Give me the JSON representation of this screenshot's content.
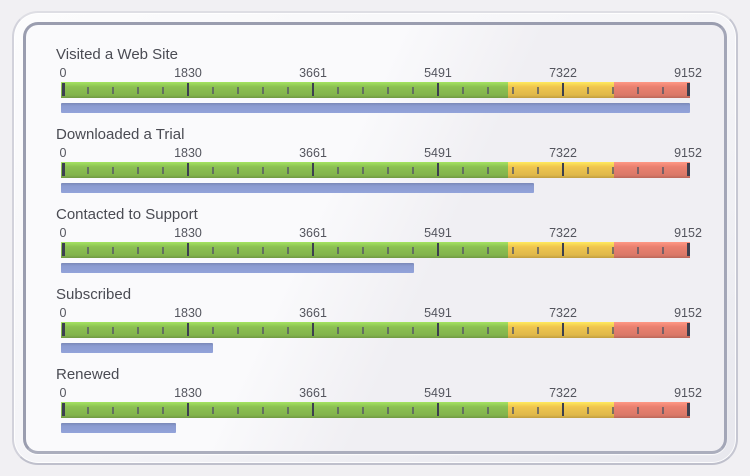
{
  "panel": {
    "page_background": "#F1F0F3",
    "inner_frame_color": "#9A9DAF",
    "content_background_light": "#FAFAFC",
    "content_background_dark": "#F0EFF3"
  },
  "chart_data": {
    "type": "bar",
    "subtype": "bullet-graph-group",
    "orientation": "horizontal",
    "title": "",
    "xlabel": "",
    "ylabel": "",
    "axis": {
      "min": 0,
      "max": 9152,
      "tick_values": [
        0,
        1830,
        3661,
        5491,
        7322,
        9152
      ],
      "tick_labels": [
        "0",
        "1830",
        "3661",
        "5491",
        "7322",
        "9152"
      ],
      "minor_ticks_per_interval": 4,
      "major_tick_color": "#3C3F4E",
      "minor_tick_color": "#555866",
      "label_color": "#54555E"
    },
    "qualitative_ranges": [
      {
        "name": "good",
        "from": 0,
        "to": 6500,
        "color": "#8CC152"
      },
      {
        "name": "warning",
        "from": 6500,
        "to": 8050,
        "color": "#F0C64F"
      },
      {
        "name": "critical",
        "from": 8050,
        "to": 9152,
        "color": "#EA8170"
      }
    ],
    "measure_color": "#8B9BD0",
    "title_color": "#4A4B53",
    "categories": [
      "Visited a Web Site",
      "Downloaded a Trial",
      "Contacted to Support",
      "Subscribed",
      "Renewed"
    ],
    "values": [
      9152,
      6880,
      5130,
      2210,
      1670
    ],
    "gauges": [
      {
        "label": "Visited a Web Site",
        "value": 9152
      },
      {
        "label": "Downloaded a Trial",
        "value": 6880
      },
      {
        "label": "Contacted to Support",
        "value": 5130
      },
      {
        "label": "Subscribed",
        "value": 2210
      },
      {
        "label": "Renewed",
        "value": 1670
      }
    ]
  }
}
